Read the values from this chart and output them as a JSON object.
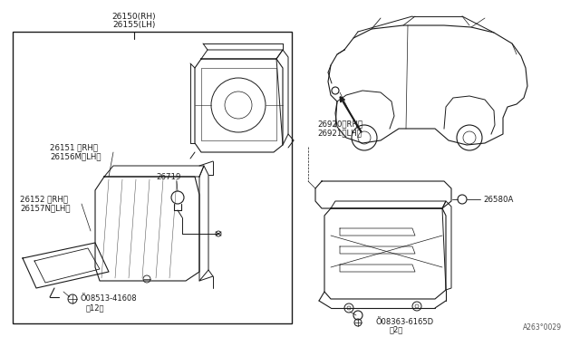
{
  "bg_color": "#ffffff",
  "line_color": "#1a1a1a",
  "text_color": "#1a1a1a",
  "fig_width": 6.4,
  "fig_height": 3.72,
  "dpi": 100,
  "watermark": "A263°0029",
  "label_26150": "26150(RH)",
  "label_26155": "26155(LH)",
  "label_26151": "26151 〈RH〉",
  "label_26156": "26156M〈LH〉",
  "label_26152": "26152 〈RH〉",
  "label_26157": "26157N〈LH〉",
  "label_26719": "26719",
  "label_screw1": "Õ08513-41608",
  "label_screw1b": "（12）",
  "label_26920": "26920〈RH〉",
  "label_26921": "26921〈LH〉",
  "label_26580": "26580A",
  "label_screw2": "Õ08363-6165D",
  "label_screw2b": "（2）"
}
